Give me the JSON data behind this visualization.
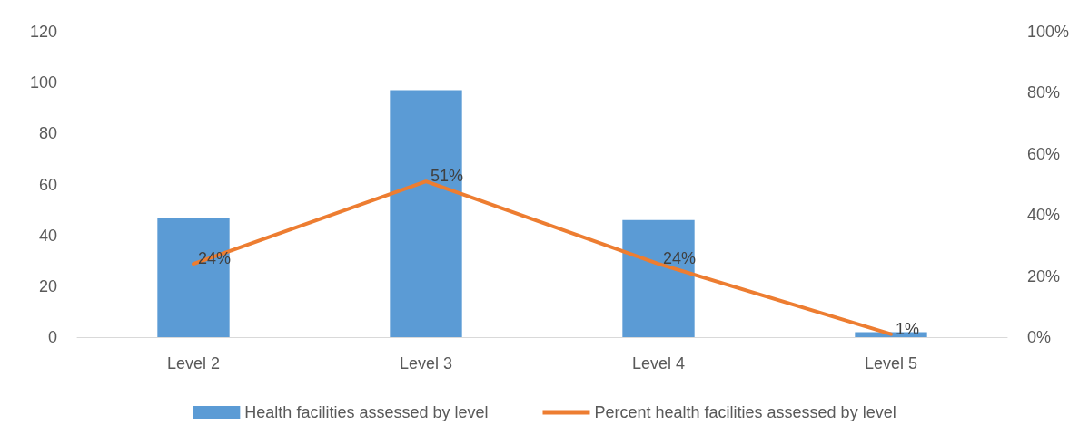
{
  "chart_data": {
    "type": "bar",
    "categories": [
      "Level 2",
      "Level 3",
      "Level 4",
      "Level 5"
    ],
    "series": [
      {
        "name": "Health facilities assessed by level",
        "color": "#5b9bd5",
        "values": [
          47,
          97,
          46,
          2
        ]
      },
      {
        "name": "Percent health facilities assessed by level",
        "type": "line",
        "axis": "y2",
        "color": "#ed7d31",
        "values": [
          24,
          51,
          24,
          1
        ],
        "value_labels": [
          "24%",
          "51%",
          "24%",
          "1%"
        ]
      }
    ],
    "ylim": [
      0,
      120
    ],
    "yticks": [
      0,
      20,
      40,
      60,
      80,
      100,
      120
    ],
    "y2lim": [
      0,
      100
    ],
    "y2ticks": [
      {
        "value": 0,
        "label": "0%"
      },
      {
        "value": 20,
        "label": "20%"
      },
      {
        "value": 40,
        "label": "40%"
      },
      {
        "value": 60,
        "label": "60%"
      },
      {
        "value": 80,
        "label": "80%"
      },
      {
        "value": 100,
        "label": "100%"
      }
    ],
    "legend": "bottom",
    "grid": false,
    "marker": "none"
  }
}
